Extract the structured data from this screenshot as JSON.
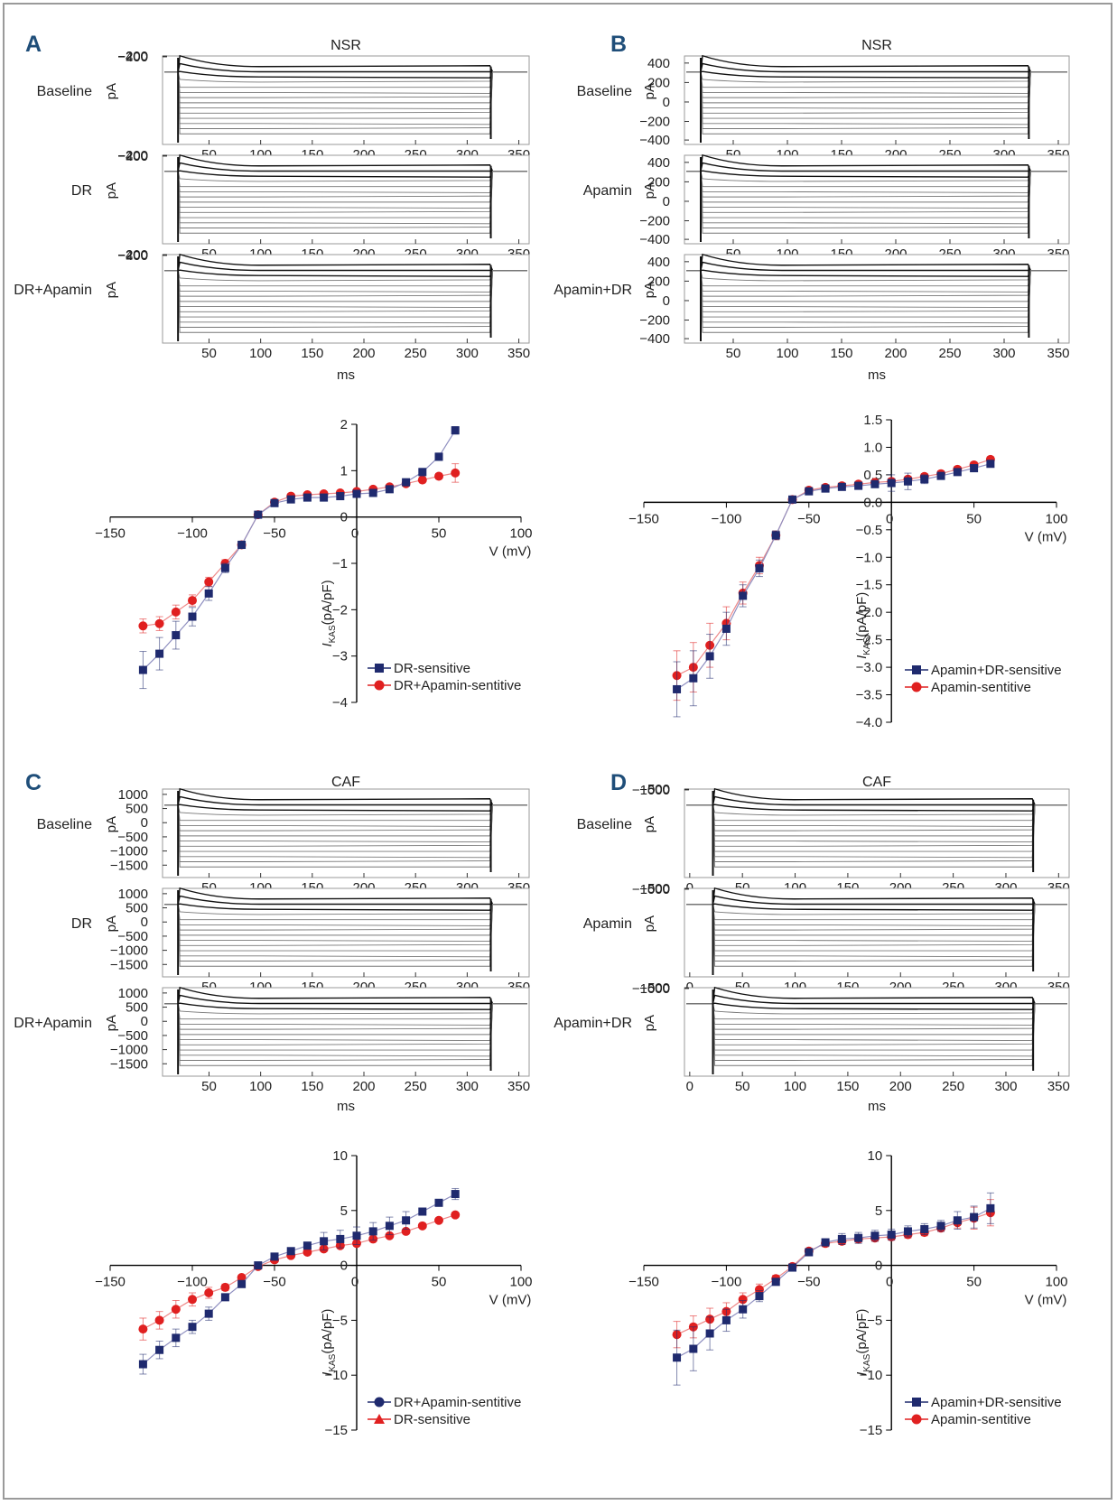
{
  "colors": {
    "series_blue": "#1f2a6e",
    "series_red": "#e02020",
    "frame": "#9a9a9a",
    "trace_dark": "#111111",
    "trace_gray": "#777777",
    "panel_letter": "#1f4e79"
  },
  "panels": [
    {
      "letter": "A",
      "title": "NSR",
      "xlabel": "ms",
      "unit": "pA",
      "conditions": [
        "Baseline",
        "DR",
        "DR+Apamin"
      ],
      "xticks": [
        "50",
        "100",
        "150",
        "200",
        "250",
        "300",
        "350"
      ],
      "yticks": [
        "200",
        "0",
        "−200",
        "−400"
      ]
    },
    {
      "letter": "B",
      "title": "NSR",
      "xlabel": "ms",
      "unit": "pA",
      "conditions": [
        "Baseline",
        "Apamin",
        "Apamin+DR"
      ],
      "xticks": [
        "50",
        "100",
        "150",
        "200",
        "250",
        "300",
        "350"
      ],
      "yticks": [
        "400",
        "200",
        "0",
        "−200",
        "−400"
      ]
    },
    {
      "letter": "C",
      "title": "CAF",
      "xlabel": "ms",
      "unit": "pA",
      "conditions": [
        "Baseline",
        "DR",
        "DR+Apamin"
      ],
      "xticks": [
        "50",
        "100",
        "150",
        "200",
        "250",
        "300",
        "350"
      ],
      "yticks": [
        "1000",
        "500",
        "0",
        "−500",
        "−1000",
        "−1500"
      ]
    },
    {
      "letter": "D",
      "title": "CAF",
      "xlabel": "ms",
      "unit": "pA",
      "conditions": [
        "Baseline",
        "Apamin",
        "Apamin+DR"
      ],
      "xticks": [
        "0",
        "50",
        "100",
        "150",
        "200",
        "250",
        "300",
        "350"
      ],
      "yticks": [
        "500",
        "0",
        "−500",
        "−1000"
      ]
    }
  ],
  "chart_data": [
    {
      "type": "line",
      "panel": "A",
      "xlabel": "V (mV)",
      "ylabel": "I_KAS (pA/pF)",
      "xlim": [
        -150,
        100
      ],
      "ylim": [
        -4,
        2
      ],
      "xticks": [
        "−150",
        "−100",
        "−50",
        "0",
        "50",
        "100"
      ],
      "yticks": [
        "2",
        "1",
        "0",
        "−1",
        "−2",
        "−3",
        "−4"
      ],
      "x": [
        -130,
        -120,
        -110,
        -100,
        -90,
        -80,
        -70,
        -60,
        -50,
        -40,
        -30,
        -20,
        -10,
        0,
        10,
        20,
        30,
        40,
        50,
        60
      ],
      "series": [
        {
          "name": "DR-sensitive",
          "marker": "square",
          "color": "#1f2a6e",
          "values": [
            -3.3,
            -2.95,
            -2.55,
            -2.15,
            -1.65,
            -1.1,
            -0.6,
            0.05,
            0.3,
            0.38,
            0.42,
            0.42,
            0.45,
            0.5,
            0.52,
            0.6,
            0.75,
            0.97,
            1.3,
            1.87
          ],
          "errors": [
            0.4,
            0.35,
            0.3,
            0.2,
            0.15,
            0.1,
            0.08,
            0.05,
            0.05,
            0.04,
            0.04,
            0.04,
            0.04,
            0.05,
            0.05,
            0.05,
            0.06,
            0.08,
            0.08,
            0.08
          ]
        },
        {
          "name": "DR+Apamin-sentitive",
          "marker": "circle",
          "color": "#e02020",
          "values": [
            -2.35,
            -2.3,
            -2.05,
            -1.8,
            -1.4,
            -1.0,
            -0.6,
            0.05,
            0.32,
            0.45,
            0.48,
            0.5,
            0.52,
            0.55,
            0.6,
            0.65,
            0.72,
            0.8,
            0.88,
            0.95
          ],
          "errors": [
            0.15,
            0.15,
            0.15,
            0.12,
            0.1,
            0.08,
            0.06,
            0.05,
            0.05,
            0.05,
            0.05,
            0.05,
            0.05,
            0.05,
            0.05,
            0.05,
            0.05,
            0.05,
            0.06,
            0.2
          ]
        }
      ]
    },
    {
      "type": "line",
      "panel": "B",
      "xlabel": "V (mV)",
      "ylabel": "I_KAS (pA/pF)",
      "xlim": [
        -150,
        100
      ],
      "ylim": [
        -4,
        1.5
      ],
      "xticks": [
        "−150",
        "−100",
        "−50",
        "0",
        "50",
        "100"
      ],
      "yticks": [
        "1.5",
        "1.0",
        "0.5",
        "0.0",
        "−0.5",
        "−1.0",
        "−1.5",
        "−2.0",
        "−2.5",
        "−3.0",
        "−3.5",
        "−4.0"
      ],
      "x": [
        -130,
        -120,
        -110,
        -100,
        -90,
        -80,
        -70,
        -60,
        -50,
        -40,
        -30,
        -20,
        -10,
        0,
        10,
        20,
        30,
        40,
        50,
        60
      ],
      "series": [
        {
          "name": "Apamin+DR-sensitive",
          "marker": "square",
          "color": "#1f2a6e",
          "values": [
            -3.4,
            -3.2,
            -2.8,
            -2.3,
            -1.7,
            -1.2,
            -0.6,
            0.05,
            0.2,
            0.25,
            0.28,
            0.3,
            0.33,
            0.35,
            0.38,
            0.42,
            0.48,
            0.55,
            0.62,
            0.7
          ],
          "errors": [
            0.5,
            0.5,
            0.4,
            0.3,
            0.2,
            0.15,
            0.08,
            0.05,
            0.05,
            0.05,
            0.05,
            0.05,
            0.05,
            0.15,
            0.15,
            0.08,
            0.05,
            0.05,
            0.05,
            0.05
          ]
        },
        {
          "name": "Apamin-sentitive",
          "marker": "circle",
          "color": "#e02020",
          "values": [
            -3.15,
            -3.0,
            -2.6,
            -2.2,
            -1.65,
            -1.15,
            -0.6,
            0.05,
            0.22,
            0.27,
            0.3,
            0.33,
            0.36,
            0.38,
            0.42,
            0.47,
            0.52,
            0.6,
            0.68,
            0.78
          ],
          "errors": [
            0.45,
            0.45,
            0.4,
            0.3,
            0.2,
            0.15,
            0.08,
            0.05,
            0.05,
            0.05,
            0.05,
            0.05,
            0.05,
            0.05,
            0.05,
            0.05,
            0.05,
            0.05,
            0.05,
            0.05
          ]
        }
      ]
    },
    {
      "type": "line",
      "panel": "C",
      "xlabel": "V (mV)",
      "ylabel": "I_KAS (pA/pF)",
      "xlim": [
        -150,
        100
      ],
      "ylim": [
        -15,
        10
      ],
      "xticks": [
        "−150",
        "−100",
        "−50",
        "0",
        "50",
        "100"
      ],
      "yticks": [
        "10",
        "5",
        "0",
        "−5",
        "−10",
        "−15"
      ],
      "x": [
        -130,
        -120,
        -110,
        -100,
        -90,
        -80,
        -70,
        -60,
        -50,
        -40,
        -30,
        -20,
        -10,
        0,
        10,
        20,
        30,
        40,
        50,
        60
      ],
      "series": [
        {
          "name": "DR+Apamin-sentitive",
          "marker": "square",
          "legend_marker": "circle",
          "color": "#1f2a6e",
          "values": [
            -9.0,
            -7.7,
            -6.6,
            -5.6,
            -4.4,
            -2.9,
            -1.7,
            0.0,
            0.8,
            1.3,
            1.8,
            2.2,
            2.4,
            2.7,
            3.1,
            3.6,
            4.1,
            4.9,
            5.7,
            6.5
          ],
          "errors": [
            0.9,
            0.8,
            0.8,
            0.6,
            0.6,
            0.3,
            0.2,
            0.2,
            0.2,
            0.3,
            0.3,
            0.8,
            0.8,
            0.8,
            0.8,
            0.8,
            0.8,
            0.2,
            0.2,
            0.5
          ]
        },
        {
          "name": "DR-sensitive",
          "marker": "circle",
          "legend_marker": "triangle",
          "color": "#e02020",
          "values": [
            -5.8,
            -5.0,
            -4.0,
            -3.1,
            -2.5,
            -2.0,
            -1.1,
            -0.1,
            0.5,
            0.9,
            1.2,
            1.5,
            1.8,
            2.0,
            2.4,
            2.7,
            3.1,
            3.6,
            4.1,
            4.6
          ],
          "errors": [
            1.0,
            0.8,
            0.8,
            0.6,
            0.5,
            0.3,
            0.2,
            0.2,
            0.2,
            0.2,
            0.2,
            0.2,
            0.2,
            0.2,
            0.2,
            0.2,
            0.2,
            0.2,
            0.2,
            0.2
          ]
        }
      ]
    },
    {
      "type": "line",
      "panel": "D",
      "xlabel": "V (mV)",
      "ylabel": "I_KAS (pA/pF)",
      "xlim": [
        -150,
        100
      ],
      "ylim": [
        -15,
        10
      ],
      "xticks": [
        "−150",
        "−100",
        "−50",
        "0",
        "50",
        "100"
      ],
      "yticks": [
        "10",
        "5",
        "0",
        "−5",
        "−10",
        "−15"
      ],
      "x": [
        -130,
        -120,
        -110,
        -100,
        -90,
        -80,
        -70,
        -60,
        -50,
        -40,
        -30,
        -20,
        -10,
        0,
        10,
        20,
        30,
        40,
        50,
        60
      ],
      "series": [
        {
          "name": "Apamin+DR-sensitive",
          "marker": "square",
          "color": "#1f2a6e",
          "values": [
            -8.4,
            -7.6,
            -6.2,
            -5.0,
            -4.0,
            -2.8,
            -1.5,
            -0.2,
            1.2,
            2.1,
            2.4,
            2.5,
            2.7,
            2.8,
            3.1,
            3.3,
            3.6,
            4.1,
            4.4,
            5.2
          ],
          "errors": [
            2.5,
            2.0,
            1.5,
            1.0,
            0.8,
            0.5,
            0.3,
            0.2,
            0.2,
            0.3,
            0.5,
            0.5,
            0.5,
            0.5,
            0.5,
            0.5,
            0.5,
            0.8,
            1.0,
            1.4
          ]
        },
        {
          "name": "Apamin-sentitive",
          "marker": "circle",
          "color": "#e02020",
          "values": [
            -6.3,
            -5.6,
            -4.9,
            -4.2,
            -3.1,
            -2.2,
            -1.2,
            -0.1,
            1.3,
            2.0,
            2.2,
            2.4,
            2.5,
            2.6,
            2.8,
            3.0,
            3.4,
            3.9,
            4.3,
            4.8
          ],
          "errors": [
            1.2,
            1.0,
            1.0,
            0.8,
            0.6,
            0.5,
            0.3,
            0.2,
            0.2,
            0.3,
            0.3,
            0.3,
            0.3,
            0.3,
            0.3,
            0.3,
            0.3,
            0.5,
            1.0,
            1.2
          ]
        }
      ]
    }
  ]
}
